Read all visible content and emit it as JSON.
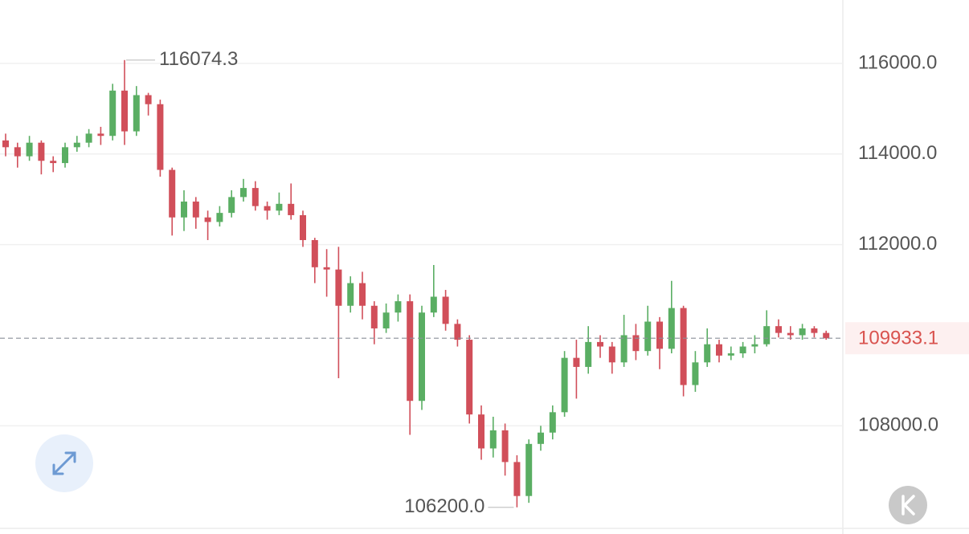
{
  "chart_data": {
    "type": "candlestick",
    "ylim": [
      105700,
      117400
    ],
    "yticks": [
      {
        "value": 116000,
        "label": "116000.0"
      },
      {
        "value": 114000,
        "label": "114000.0"
      },
      {
        "value": 112000,
        "label": "112000.0"
      },
      {
        "value": 108000,
        "label": "108000.0"
      }
    ],
    "grid": true,
    "up_color": "#5aae63",
    "down_color": "#d14f5a",
    "open": [
      114300,
      114150,
      113950,
      114250,
      113850,
      113800,
      114150,
      114250,
      114450,
      114400,
      115400,
      114500,
      115300,
      115100,
      113650,
      112600,
      112950,
      112600,
      112500,
      112700,
      113050,
      113250,
      112850,
      112750,
      112900,
      112650,
      112100,
      111500,
      111450,
      110650,
      111150,
      110650,
      110150,
      110500,
      110750,
      108550,
      110500,
      110850,
      110250,
      109900,
      108250,
      107500,
      107900,
      107200,
      106450,
      107600,
      107850,
      108300,
      109500,
      109300,
      109850,
      109750,
      109400,
      110000,
      109650,
      110300,
      109700,
      110600,
      108900,
      109400,
      109800,
      109550,
      109600,
      109750,
      109800,
      110200,
      110050,
      110000,
      110150,
      110050
    ],
    "high": [
      114450,
      114250,
      114400,
      114300,
      113950,
      114250,
      114400,
      114550,
      114600,
      115550,
      116074.3,
      115500,
      115350,
      115200,
      113700,
      113200,
      113050,
      112750,
      112850,
      113200,
      113450,
      113400,
      112950,
      113150,
      113350,
      112750,
      112150,
      111900,
      111950,
      111300,
      111400,
      110750,
      110700,
      110900,
      110900,
      110650,
      111550,
      111000,
      110350,
      110000,
      108450,
      108200,
      108050,
      107350,
      107700,
      108000,
      108450,
      109650,
      109900,
      110200,
      110000,
      109850,
      110450,
      110250,
      110650,
      110400,
      111200,
      110650,
      109650,
      110150,
      109900,
      109750,
      109850,
      110000,
      110550,
      110350,
      110200,
      110250,
      110200,
      110100
    ],
    "low": [
      113950,
      113700,
      113850,
      113550,
      113600,
      113700,
      114050,
      114150,
      114200,
      114300,
      114200,
      114400,
      114850,
      113500,
      112200,
      112300,
      112350,
      112100,
      112400,
      112600,
      112950,
      112750,
      112550,
      112650,
      112550,
      111950,
      111150,
      110850,
      109050,
      110500,
      110350,
      109800,
      110050,
      110300,
      107800,
      108350,
      110400,
      110100,
      109750,
      108050,
      107250,
      107300,
      106900,
      106200.0,
      106300,
      107450,
      107700,
      108200,
      108600,
      109150,
      109500,
      109150,
      109300,
      109450,
      109550,
      109250,
      109600,
      108650,
      108750,
      109300,
      109400,
      109450,
      109500,
      109600,
      109750,
      109950,
      109900,
      109900,
      109950,
      109900
    ],
    "close": [
      114150,
      113950,
      114250,
      113850,
      113800,
      114150,
      114250,
      114450,
      114400,
      115400,
      114500,
      115300,
      115100,
      113650,
      112600,
      112950,
      112600,
      112500,
      112700,
      113050,
      113250,
      112850,
      112750,
      112900,
      112650,
      112100,
      111500,
      111450,
      110650,
      111150,
      110650,
      110150,
      110500,
      110750,
      108550,
      110500,
      110850,
      110250,
      109900,
      108250,
      107500,
      107900,
      107200,
      106450,
      107600,
      107850,
      108300,
      109500,
      109300,
      109850,
      109750,
      109400,
      110000,
      109650,
      110300,
      109700,
      110600,
      108900,
      109400,
      109800,
      109550,
      109600,
      109750,
      109800,
      110200,
      110050,
      110000,
      110150,
      110050,
      109933.1
    ],
    "max_label": "116074.3",
    "min_label": "106200.0",
    "last_label": "109933.1"
  }
}
